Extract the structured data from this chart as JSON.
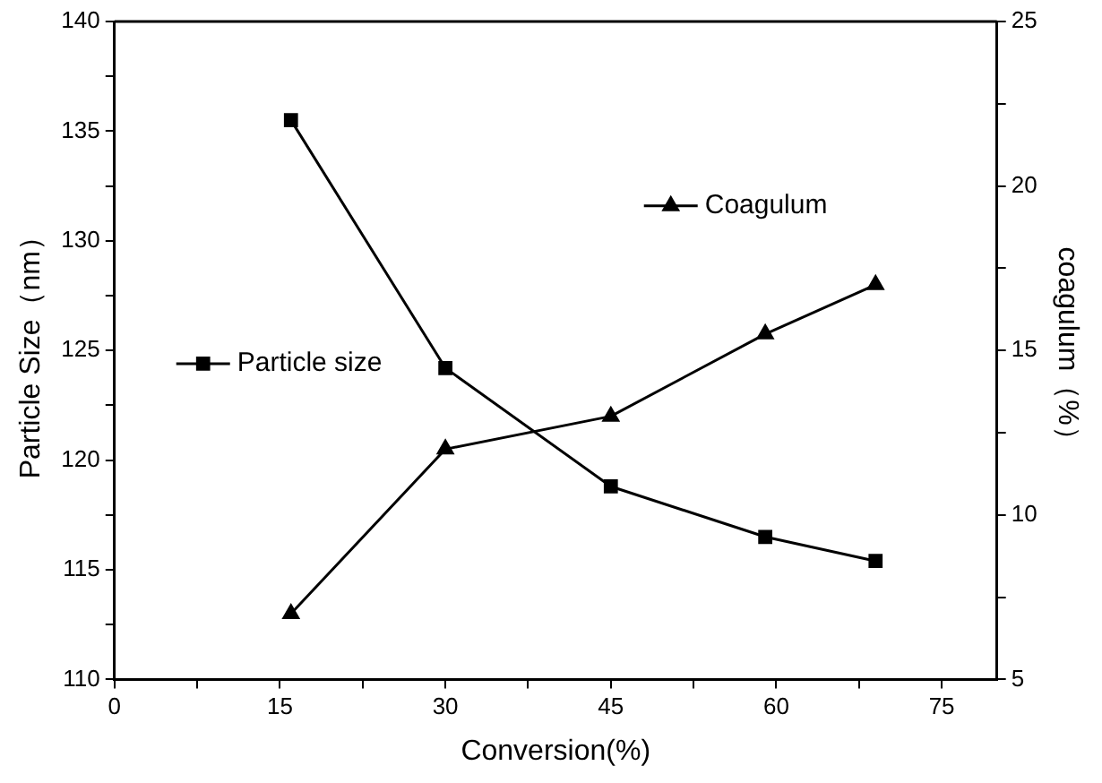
{
  "chart_data": {
    "type": "line",
    "xlabel": "Conversion(%)",
    "ylabel": "Particle Size（nm）",
    "y2label": "coagulum（%）",
    "x": [
      16,
      30,
      45,
      59,
      69
    ],
    "series": [
      {
        "name": "Particle size",
        "color": "#000000",
        "marker": "square",
        "values": [
          135.5,
          124.2,
          118.8,
          116.5,
          115.4
        ]
      },
      {
        "name": "Coagulum",
        "color": "#000000",
        "marker": "triangle",
        "axis": "y2",
        "values": [
          7.0,
          12.0,
          13.0,
          15.5,
          17.0
        ]
      }
    ],
    "xlim": [
      0,
      80
    ],
    "xticks": [
      0,
      {
        "value": 7.5,
        "label": null
      },
      15,
      {
        "value": 22.5,
        "label": null
      },
      30,
      {
        "value": 37.5,
        "label": null
      },
      45,
      {
        "value": 52.5,
        "label": null
      },
      60,
      {
        "value": 67.5,
        "label": null
      },
      75
    ],
    "ylim": [
      110,
      140
    ],
    "yticks": [
      110,
      {
        "value": 112.5,
        "label": null
      },
      115,
      {
        "value": 117.5,
        "label": null
      },
      120,
      {
        "value": 122.5,
        "label": null
      },
      125,
      {
        "value": 127.5,
        "label": null
      },
      130,
      {
        "value": 132.5,
        "label": null
      },
      135,
      {
        "value": 137.5,
        "label": null
      },
      140
    ],
    "y2lim": [
      5,
      25
    ],
    "y2ticks": [
      5,
      {
        "value": 7.5,
        "label": null
      },
      10,
      {
        "value": 12.5,
        "label": null
      },
      15,
      {
        "value": 17.5,
        "label": null
      },
      20,
      {
        "value": 22.5,
        "label": null
      },
      25
    ],
    "grid": false,
    "legend": "top left",
    "line_style": "solid"
  }
}
